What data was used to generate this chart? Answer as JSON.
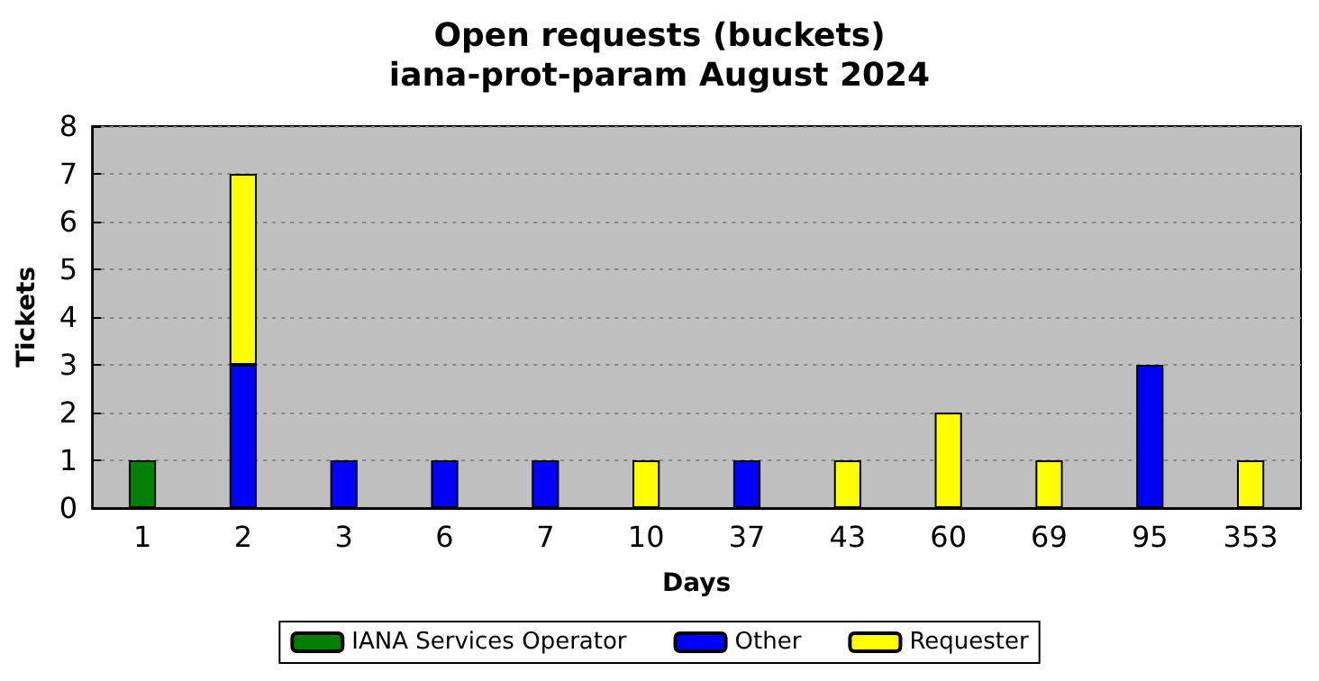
{
  "chart_data": {
    "type": "bar",
    "title": "Open requests (buckets)",
    "subtitle": "iana-prot-param August 2024",
    "xlabel": "Days",
    "ylabel": "Tickets",
    "categories": [
      "1",
      "2",
      "3",
      "6",
      "7",
      "10",
      "37",
      "43",
      "60",
      "69",
      "95",
      "353"
    ],
    "stacked": true,
    "series": [
      {
        "name": "IANA Services Operator",
        "color": "#008000",
        "values": [
          1,
          null,
          null,
          null,
          null,
          null,
          null,
          null,
          null,
          null,
          null,
          null
        ]
      },
      {
        "name": "Other",
        "color": "#0000ff",
        "values": [
          null,
          3,
          1,
          1,
          1,
          null,
          1,
          null,
          null,
          null,
          3,
          null
        ]
      },
      {
        "name": "Requester",
        "color": "#ffff00",
        "values": [
          null,
          4,
          null,
          null,
          null,
          1,
          null,
          1,
          2,
          1,
          null,
          1
        ]
      }
    ],
    "ylim": [
      0,
      8
    ],
    "yticks": [
      0,
      1,
      2,
      3,
      4,
      5,
      6,
      7,
      8
    ],
    "grid": "y",
    "legend": "bottom"
  }
}
